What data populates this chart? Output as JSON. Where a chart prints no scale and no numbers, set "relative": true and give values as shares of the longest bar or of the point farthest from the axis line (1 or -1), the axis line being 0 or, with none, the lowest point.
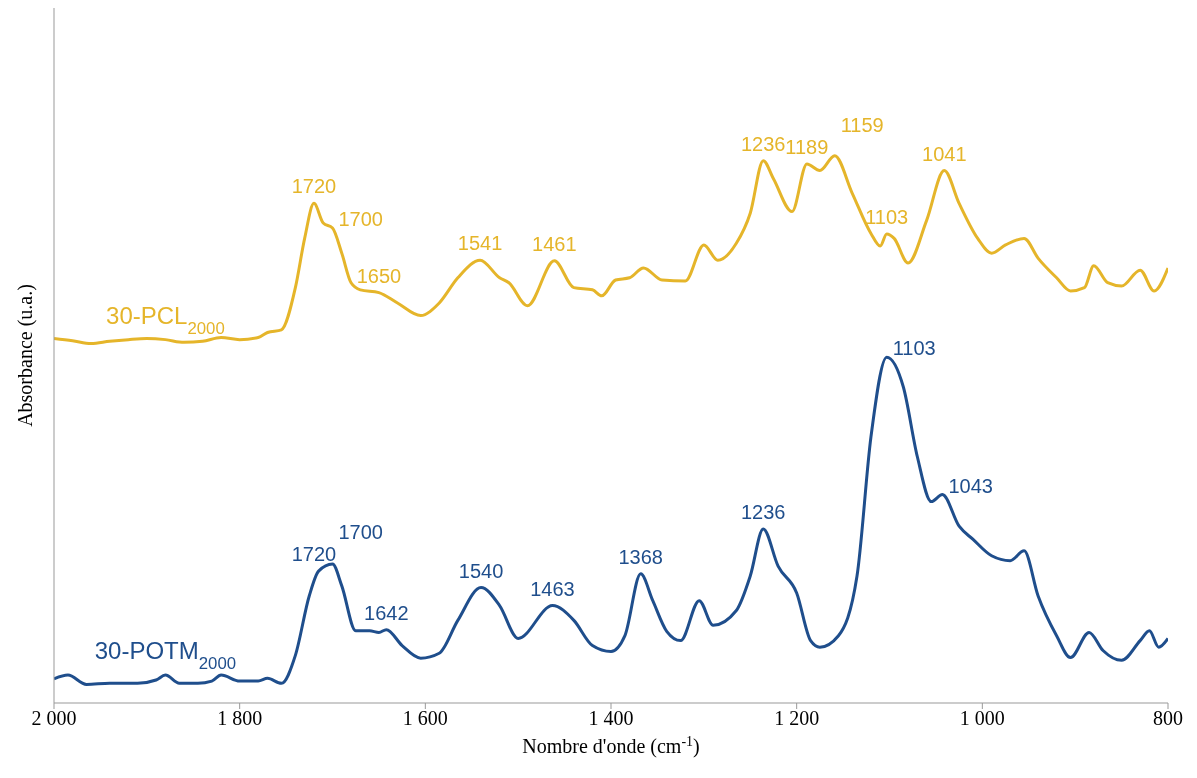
{
  "chart_data": {
    "type": "line",
    "relative": true,
    "xlabel": "Nombre d'onde (cm$^{-1}$)",
    "ylabel": "Absorbance (u.a.)",
    "xlim": [
      2000,
      800
    ],
    "xticks": [
      {
        "value": 2000,
        "label": "2 000"
      },
      {
        "value": 1800,
        "label": "1 800"
      },
      {
        "value": 1600,
        "label": "1 600"
      },
      {
        "value": 1400,
        "label": "1 400"
      },
      {
        "value": 1200,
        "label": "1 200"
      },
      {
        "value": 1000,
        "label": "1 000"
      },
      800
    ],
    "grid": false,
    "legend": false,
    "marker": "none",
    "line_style": "solid",
    "series": [
      {
        "name": "30-PCL$_{2000}$",
        "color": "#e5b52a",
        "x": [
          2000,
          1980,
          1960,
          1940,
          1920,
          1900,
          1880,
          1860,
          1840,
          1820,
          1800,
          1780,
          1770,
          1755,
          1740,
          1730,
          1720,
          1710,
          1700,
          1690,
          1680,
          1670,
          1650,
          1630,
          1605,
          1585,
          1565,
          1541,
          1520,
          1510,
          1490,
          1461,
          1440,
          1420,
          1410,
          1395,
          1380,
          1365,
          1345,
          1320,
          1300,
          1285,
          1265,
          1250,
          1236,
          1225,
          1205,
          1189,
          1175,
          1159,
          1140,
          1120,
          1110,
          1103,
          1095,
          1080,
          1060,
          1041,
          1025,
          1005,
          990,
          975,
          955,
          940,
          920,
          905,
          890,
          880,
          865,
          850,
          830,
          815,
          800
        ],
        "values": [
          0.666,
          0.662,
          0.657,
          0.661,
          0.664,
          0.666,
          0.664,
          0.659,
          0.661,
          0.668,
          0.664,
          0.668,
          0.677,
          0.682,
          0.759,
          0.849,
          0.913,
          0.877,
          0.868,
          0.822,
          0.768,
          0.755,
          0.75,
          0.731,
          0.708,
          0.731,
          0.777,
          0.809,
          0.777,
          0.768,
          0.726,
          0.808,
          0.759,
          0.755,
          0.744,
          0.773,
          0.777,
          0.795,
          0.773,
          0.771,
          0.837,
          0.809,
          0.84,
          0.895,
          0.991,
          0.958,
          0.898,
          0.985,
          0.973,
          1,
          0.931,
          0.858,
          0.835,
          0.857,
          0.849,
          0.804,
          0.882,
          0.973,
          0.913,
          0.849,
          0.822,
          0.837,
          0.849,
          0.813,
          0.777,
          0.753,
          0.759,
          0.799,
          0.768,
          0.762,
          0.791,
          0.753,
          0.795
        ]
      },
      {
        "name": "30-POTM$_{2000}$",
        "color": "#1f4e8c",
        "x": [
          2000,
          1985,
          1965,
          1940,
          1910,
          1890,
          1880,
          1865,
          1845,
          1830,
          1820,
          1800,
          1780,
          1770,
          1755,
          1740,
          1725,
          1715,
          1700,
          1690,
          1675,
          1660,
          1650,
          1642,
          1625,
          1605,
          1585,
          1565,
          1540,
          1520,
          1500,
          1463,
          1440,
          1420,
          1400,
          1385,
          1368,
          1355,
          1340,
          1325,
          1305,
          1290,
          1265,
          1250,
          1236,
          1220,
          1200,
          1185,
          1175,
          1155,
          1135,
          1120,
          1103,
          1085,
          1070,
          1055,
          1043,
          1025,
          1010,
          990,
          970,
          955,
          940,
          920,
          905,
          885,
          870,
          850,
          830,
          820,
          810,
          800
        ],
        "values": [
          0.044,
          0.051,
          0.034,
          0.036,
          0.036,
          0.042,
          0.051,
          0.036,
          0.036,
          0.04,
          0.051,
          0.04,
          0.04,
          0.045,
          0.036,
          0.087,
          0.196,
          0.241,
          0.254,
          0.214,
          0.132,
          0.132,
          0.129,
          0.134,
          0.105,
          0.082,
          0.091,
          0.151,
          0.211,
          0.178,
          0.118,
          0.178,
          0.151,
          0.105,
          0.094,
          0.123,
          0.236,
          0.187,
          0.131,
          0.114,
          0.187,
          0.142,
          0.169,
          0.232,
          0.318,
          0.25,
          0.201,
          0.114,
          0.102,
          0.123,
          0.232,
          0.486,
          0.632,
          0.577,
          0.45,
          0.368,
          0.381,
          0.323,
          0.299,
          0.269,
          0.26,
          0.278,
          0.196,
          0.123,
          0.083,
          0.129,
          0.096,
          0.078,
          0.114,
          0.132,
          0.102,
          0.118
        ]
      }
    ],
    "annotations": [
      {
        "text": "1720",
        "x": 1720,
        "y": 0.913
      },
      {
        "text": "1700",
        "x": 1700,
        "y": 0.868
      },
      {
        "text": "1650",
        "x": 1650,
        "y": 0.75
      },
      {
        "text": "1541",
        "x": 1541,
        "y": 0.809
      },
      {
        "text": "1461",
        "x": 1461,
        "y": 0.808
      },
      {
        "text": "1236",
        "x": 1236,
        "y": 0.991
      },
      {
        "text": "1189",
        "x": 1189,
        "y": 0.985
      },
      {
        "text": "1159",
        "x": 1159,
        "y": 1
      },
      {
        "text": "1103",
        "x": 1103,
        "y": 0.857
      },
      {
        "text": "1041",
        "x": 1041,
        "y": 0.973
      },
      {
        "text": "1720",
        "x": 1720,
        "y": 0.241
      },
      {
        "text": "1700",
        "x": 1700,
        "y": 0.254
      },
      {
        "text": "1642",
        "x": 1642,
        "y": 0.134
      },
      {
        "text": "1540",
        "x": 1540,
        "y": 0.211
      },
      {
        "text": "1463",
        "x": 1463,
        "y": 0.178
      },
      {
        "text": "1368",
        "x": 1368,
        "y": 0.236
      },
      {
        "text": "1236",
        "x": 1236,
        "y": 0.318
      },
      {
        "text": "1103",
        "x": 1103,
        "y": 0.632
      },
      {
        "text": "1043",
        "x": 1043,
        "y": 0.381
      }
    ]
  }
}
